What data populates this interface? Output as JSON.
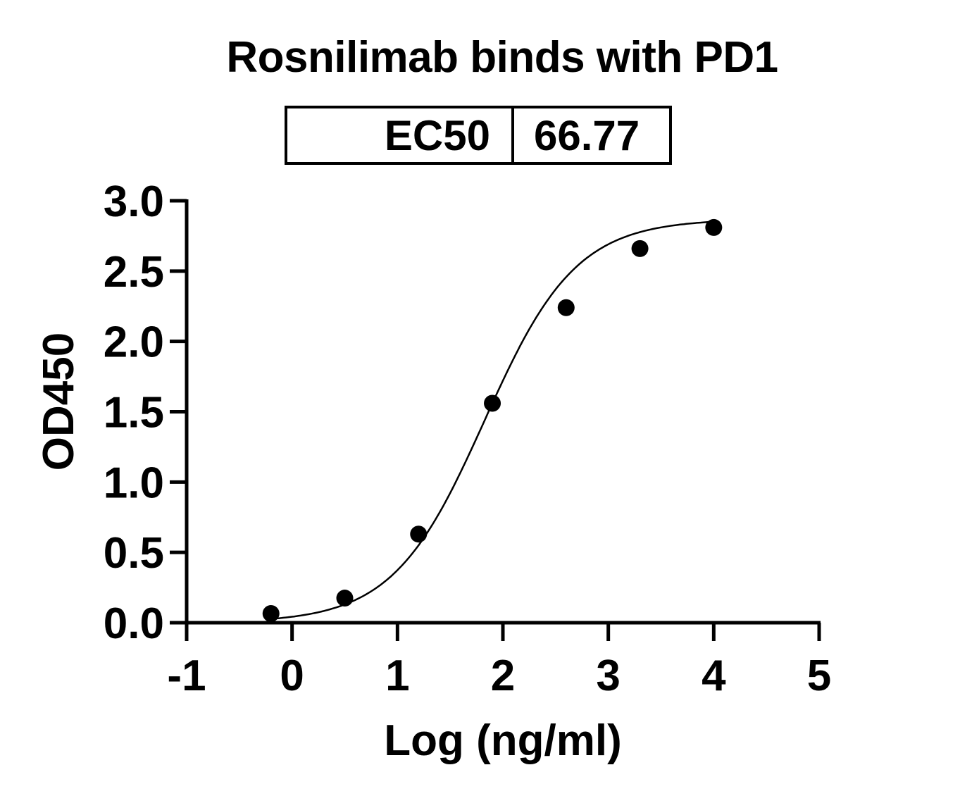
{
  "chart_data": {
    "type": "scatter",
    "title": "Rosnilimab binds with PD1",
    "annotation_table": {
      "label": "EC50",
      "value": "66.77"
    },
    "xlabel": "Log (ng/ml)",
    "ylabel": "OD450",
    "xlim": [
      -1,
      5
    ],
    "ylim": [
      0,
      3.0
    ],
    "x_ticks": [
      "-1",
      "0",
      "1",
      "2",
      "3",
      "4",
      "5"
    ],
    "y_ticks": [
      "0.0",
      "0.5",
      "1.0",
      "1.5",
      "2.0",
      "2.5",
      "3.0"
    ],
    "grid": false,
    "legend": null,
    "series": [
      {
        "name": "Rosnilimab",
        "marker": "filled-circle",
        "fit": "4-parameter logistic curve",
        "x": [
          -0.2,
          0.5,
          1.2,
          1.9,
          2.6,
          3.3,
          4.0
        ],
        "y": [
          0.065,
          0.175,
          0.63,
          1.56,
          2.24,
          2.66,
          2.81
        ]
      }
    ]
  }
}
